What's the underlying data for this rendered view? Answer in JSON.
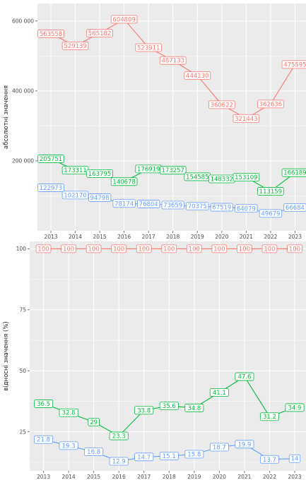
{
  "chart_data": [
    {
      "type": "line",
      "ylabel": "абсолютні значення",
      "x": [
        "2013",
        "2014",
        "2015",
        "2016",
        "2017",
        "2018",
        "2019",
        "2020",
        "2021",
        "2022",
        "2023"
      ],
      "ylim": [
        0,
        650000
      ],
      "yticks": [
        200000,
        400000,
        600000
      ],
      "ytick_labels": [
        "200 000",
        "400 000",
        "600 000"
      ],
      "grid": true,
      "series": [
        {
          "color": "#f8766d",
          "values": [
            563558,
            529139,
            565182,
            604809,
            523911,
            487133,
            444130,
            360622,
            321443,
            362636,
            475595
          ]
        },
        {
          "color": "#00ba38",
          "values": [
            205751,
            173311,
            163795,
            140678,
            176919,
            173257,
            154585,
            148332,
            153109,
            113159,
            166189
          ]
        },
        {
          "color": "#619cff",
          "values": [
            122973,
            102170,
            94798,
            78174,
            76804,
            73659,
            70375,
            67519,
            64079,
            49679,
            66684
          ]
        }
      ]
    },
    {
      "type": "line",
      "ylabel": "відносні значення (%)",
      "x": [
        "2013",
        "2014",
        "2015",
        "2016",
        "2017",
        "2018",
        "2019",
        "2020",
        "2021",
        "2022",
        "2023"
      ],
      "ylim": [
        9,
        103
      ],
      "yticks": [
        25,
        50,
        75,
        100
      ],
      "ytick_labels": [
        "25",
        "50",
        "75",
        "100"
      ],
      "grid": true,
      "series": [
        {
          "color": "#f8766d",
          "values": [
            100,
            100,
            100,
            100,
            100,
            100,
            100,
            100,
            100,
            100,
            100
          ]
        },
        {
          "color": "#00ba38",
          "values": [
            36.5,
            32.8,
            29,
            23.3,
            33.8,
            35.6,
            34.8,
            41.1,
            47.6,
            31.2,
            34.9
          ]
        },
        {
          "color": "#619cff",
          "values": [
            21.8,
            19.3,
            16.8,
            12.9,
            14.7,
            15.1,
            15.8,
            18.7,
            19.9,
            13.7,
            14
          ]
        }
      ]
    }
  ]
}
